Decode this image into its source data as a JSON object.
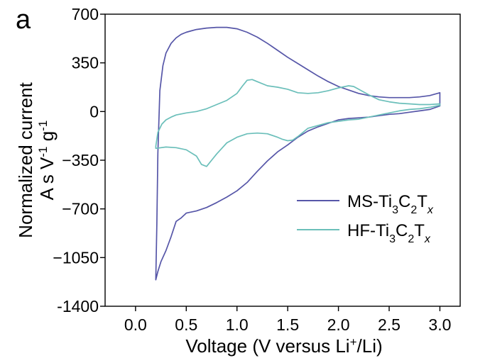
{
  "chart_data": {
    "type": "line",
    "panel_label": "a",
    "xlabel": "Voltage (V versus Li+/Li)",
    "xlabel_parts": {
      "pre": "Voltage (V versus Li",
      "sup": "+",
      "post": "/Li)"
    },
    "ylabel_line1": "Normalized current",
    "ylabel_line2": {
      "pre": "A s V",
      "sup1": "-1",
      "mid": " g",
      "sup2": "-1"
    },
    "xlim": [
      -0.3,
      3.2
    ],
    "ylim": [
      -1400,
      700
    ],
    "x_ticks": [
      0.0,
      0.5,
      1.0,
      1.5,
      2.0,
      2.5,
      3.0
    ],
    "x_tick_labels": [
      "0.0",
      "0.5",
      "1.0",
      "1.5",
      "2.0",
      "2.5",
      "3.0"
    ],
    "y_ticks": [
      700,
      350,
      0,
      -350,
      -700,
      -1050,
      -1400
    ],
    "y_tick_labels": [
      "700",
      "350",
      "0",
      "−350",
      "−700",
      "−1050",
      "-1400"
    ],
    "grid": false,
    "legend_position": "bottom-right",
    "series": [
      {
        "name": "MS-Ti3C2Tx",
        "name_parts": {
          "a": "MS-Ti",
          "s1": "3",
          "b": "C",
          "s2": "2",
          "c": "T",
          "s3": "x"
        },
        "color": "#5656a8",
        "x": [
          0.2,
          0.21,
          0.22,
          0.24,
          0.27,
          0.3,
          0.35,
          0.4,
          0.45,
          0.5,
          0.55,
          0.6,
          0.7,
          0.8,
          0.9,
          1.0,
          1.1,
          1.2,
          1.3,
          1.4,
          1.5,
          1.6,
          1.7,
          1.8,
          1.9,
          2.0,
          2.1,
          2.2,
          2.3,
          2.4,
          2.5,
          2.6,
          2.7,
          2.8,
          2.9,
          3.0,
          3.0,
          2.9,
          2.8,
          2.7,
          2.6,
          2.5,
          2.4,
          2.3,
          2.2,
          2.1,
          2.0,
          1.9,
          1.8,
          1.7,
          1.6,
          1.5,
          1.4,
          1.3,
          1.2,
          1.1,
          1.0,
          0.9,
          0.8,
          0.7,
          0.6,
          0.5,
          0.45,
          0.4,
          0.35,
          0.3,
          0.25,
          0.22,
          0.2
        ],
        "y": [
          -1200,
          -800,
          -300,
          150,
          330,
          420,
          490,
          530,
          555,
          570,
          580,
          590,
          600,
          605,
          605,
          595,
          570,
          535,
          490,
          440,
          390,
          345,
          300,
          255,
          215,
          180,
          155,
          130,
          115,
          105,
          100,
          100,
          100,
          105,
          115,
          135,
          40,
          15,
          5,
          -5,
          -15,
          -20,
          -30,
          -40,
          -45,
          -50,
          -60,
          -85,
          -110,
          -140,
          -185,
          -240,
          -290,
          -355,
          -430,
          -510,
          -570,
          -615,
          -655,
          -690,
          -715,
          -730,
          -765,
          -790,
          -900,
          -1000,
          -1080,
          -1150,
          -1210
        ]
      },
      {
        "name": "HF-Ti3C2Tx",
        "name_parts": {
          "a": "HF-Ti",
          "s1": "3",
          "b": "C",
          "s2": "2",
          "c": "T",
          "s3": "x"
        },
        "color": "#6bbfba",
        "x": [
          0.2,
          0.22,
          0.26,
          0.3,
          0.35,
          0.4,
          0.5,
          0.6,
          0.7,
          0.8,
          0.9,
          1.0,
          1.05,
          1.1,
          1.15,
          1.2,
          1.3,
          1.4,
          1.5,
          1.6,
          1.7,
          1.8,
          1.9,
          2.0,
          2.1,
          2.15,
          2.2,
          2.3,
          2.4,
          2.5,
          2.6,
          2.7,
          2.8,
          2.9,
          3.0,
          3.0,
          2.9,
          2.8,
          2.7,
          2.6,
          2.5,
          2.4,
          2.3,
          2.2,
          2.1,
          2.0,
          1.9,
          1.8,
          1.7,
          1.65,
          1.6,
          1.55,
          1.5,
          1.45,
          1.4,
          1.3,
          1.2,
          1.1,
          1.0,
          0.9,
          0.85,
          0.8,
          0.75,
          0.7,
          0.65,
          0.6,
          0.5,
          0.4,
          0.3,
          0.2
        ],
        "y": [
          -250,
          -150,
          -90,
          -60,
          -40,
          -25,
          -10,
          0,
          20,
          50,
          80,
          130,
          180,
          225,
          230,
          215,
          185,
          175,
          160,
          135,
          130,
          135,
          150,
          170,
          185,
          180,
          160,
          120,
          85,
          70,
          60,
          55,
          50,
          50,
          55,
          45,
          30,
          20,
          15,
          5,
          -10,
          -25,
          -40,
          -55,
          -60,
          -70,
          -80,
          -100,
          -120,
          -150,
          -180,
          -205,
          -210,
          -200,
          -185,
          -160,
          -155,
          -160,
          -185,
          -225,
          -265,
          -305,
          -350,
          -395,
          -380,
          -320,
          -275,
          -260,
          -255,
          -265
        ]
      }
    ]
  }
}
